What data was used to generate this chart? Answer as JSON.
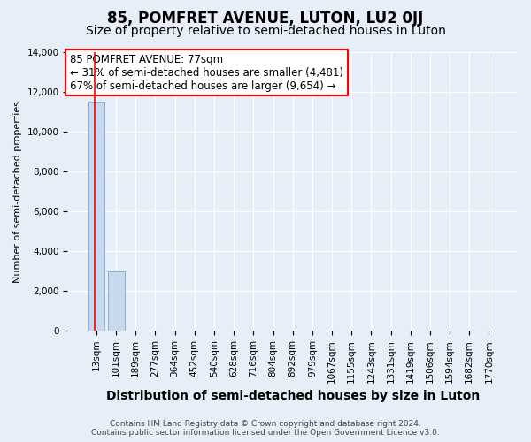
{
  "title": "85, POMFRET AVENUE, LUTON, LU2 0JJ",
  "subtitle": "Size of property relative to semi-detached houses in Luton",
  "xlabel": "Distribution of semi-detached houses by size in Luton",
  "ylabel": "Number of semi-detached properties",
  "footnote1": "Contains HM Land Registry data © Crown copyright and database right 2024.",
  "footnote2": "Contains public sector information licensed under the Open Government Licence v3.0.",
  "annotation_line1": "85 POMFRET AVENUE: 77sqm",
  "annotation_line2": "← 31% of semi-detached houses are smaller (4,481)",
  "annotation_line3": "67% of semi-detached houses are larger (9,654) →",
  "bar_labels": [
    "13sqm",
    "101sqm",
    "189sqm",
    "277sqm",
    "364sqm",
    "452sqm",
    "540sqm",
    "628sqm",
    "716sqm",
    "804sqm",
    "892sqm",
    "979sqm",
    "1067sqm",
    "1155sqm",
    "1243sqm",
    "1331sqm",
    "1419sqm",
    "1506sqm",
    "1594sqm",
    "1682sqm",
    "1770sqm"
  ],
  "bar_values": [
    11500,
    3000,
    0,
    0,
    0,
    0,
    0,
    0,
    0,
    0,
    0,
    0,
    0,
    0,
    0,
    0,
    0,
    0,
    0,
    0,
    0
  ],
  "bar_color": "#c8d8ee",
  "bar_edge_color": "#7aaad0",
  "property_line_color": "red",
  "ylim": [
    0,
    14000
  ],
  "yticks": [
    0,
    2000,
    4000,
    6000,
    8000,
    10000,
    12000,
    14000
  ],
  "background_color": "#e8eef8",
  "grid_color": "#ffffff",
  "annotation_box_color": "#ffffff",
  "annotation_border_color": "red",
  "title_fontsize": 12,
  "subtitle_fontsize": 10,
  "ylabel_fontsize": 8,
  "xlabel_fontsize": 10,
  "tick_fontsize": 7.5,
  "annotation_fontsize": 8.5,
  "footnote_fontsize": 6.5
}
